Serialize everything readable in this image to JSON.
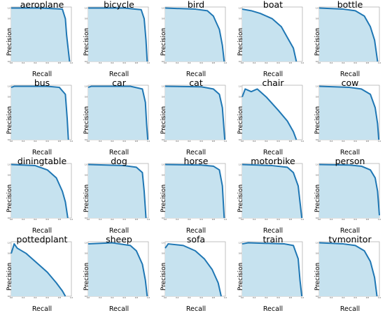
{
  "chart_data": {
    "type": "area",
    "grid": false,
    "x_ticks": [
      "0.0",
      "0.2",
      "0.4",
      "0.6",
      "0.8",
      "1.0"
    ],
    "y_ticks": [
      "0.0",
      "0.2",
      "0.4",
      "0.6",
      "0.8",
      "1.0"
    ],
    "xlim": [
      0,
      1
    ],
    "ylim": [
      0,
      1.02
    ],
    "colors": {
      "line": "#1f77b4",
      "fill": "#c6e2ef",
      "frame": "#999999"
    },
    "panels": [
      {
        "title": "aeroplane",
        "xlabel": "Recall",
        "ylabel": "Precision",
        "points": [
          [
            0,
            1.0
          ],
          [
            0.5,
            1.0
          ],
          [
            0.85,
            0.98
          ],
          [
            0.9,
            0.8
          ],
          [
            0.92,
            0.5
          ],
          [
            0.95,
            0.2
          ],
          [
            0.97,
            0.0
          ]
        ]
      },
      {
        "title": "bicycle",
        "xlabel": "Recall",
        "ylabel": "Precision",
        "points": [
          [
            0,
            1.0
          ],
          [
            0.6,
            1.0
          ],
          [
            0.88,
            0.97
          ],
          [
            0.93,
            0.8
          ],
          [
            0.96,
            0.4
          ],
          [
            0.98,
            0.0
          ]
        ]
      },
      {
        "title": "bird",
        "xlabel": "Recall",
        "ylabel": "Precision",
        "points": [
          [
            0,
            1.0
          ],
          [
            0.5,
            0.98
          ],
          [
            0.7,
            0.95
          ],
          [
            0.8,
            0.85
          ],
          [
            0.9,
            0.6
          ],
          [
            0.95,
            0.3
          ],
          [
            0.98,
            0.0
          ]
        ]
      },
      {
        "title": "boat",
        "xlabel": "Recall",
        "ylabel": "Precision",
        "points": [
          [
            0,
            0.98
          ],
          [
            0.15,
            0.95
          ],
          [
            0.3,
            0.9
          ],
          [
            0.5,
            0.8
          ],
          [
            0.65,
            0.65
          ],
          [
            0.75,
            0.45
          ],
          [
            0.85,
            0.25
          ],
          [
            0.9,
            0.0
          ]
        ]
      },
      {
        "title": "bottle",
        "xlabel": "Recall",
        "ylabel": "Precision",
        "points": [
          [
            0,
            1.0
          ],
          [
            0.4,
            0.98
          ],
          [
            0.6,
            0.95
          ],
          [
            0.75,
            0.85
          ],
          [
            0.85,
            0.65
          ],
          [
            0.92,
            0.4
          ],
          [
            0.97,
            0.0
          ]
        ]
      },
      {
        "title": "bus",
        "xlabel": "Recall",
        "ylabel": "Precision",
        "points": [
          [
            0,
            0.98
          ],
          [
            0.05,
            1.0
          ],
          [
            0.6,
            1.0
          ],
          [
            0.8,
            0.98
          ],
          [
            0.9,
            0.85
          ],
          [
            0.93,
            0.4
          ],
          [
            0.95,
            0.0
          ]
        ]
      },
      {
        "title": "car",
        "xlabel": "Recall",
        "ylabel": "Precision",
        "points": [
          [
            0,
            0.98
          ],
          [
            0.05,
            1.0
          ],
          [
            0.7,
            1.0
          ],
          [
            0.9,
            0.95
          ],
          [
            0.95,
            0.7
          ],
          [
            0.97,
            0.3
          ],
          [
            0.99,
            0.0
          ]
        ]
      },
      {
        "title": "cat",
        "xlabel": "Recall",
        "ylabel": "Precision",
        "points": [
          [
            0,
            1.0
          ],
          [
            0.6,
            0.99
          ],
          [
            0.8,
            0.95
          ],
          [
            0.9,
            0.85
          ],
          [
            0.95,
            0.6
          ],
          [
            0.97,
            0.3
          ],
          [
            0.99,
            0.0
          ]
        ]
      },
      {
        "title": "chair",
        "xlabel": "Recall",
        "ylabel": "Precision",
        "points": [
          [
            0,
            0.8
          ],
          [
            0.05,
            0.95
          ],
          [
            0.15,
            0.9
          ],
          [
            0.25,
            0.95
          ],
          [
            0.4,
            0.8
          ],
          [
            0.6,
            0.55
          ],
          [
            0.75,
            0.35
          ],
          [
            0.85,
            0.15
          ],
          [
            0.9,
            0.0
          ]
        ]
      },
      {
        "title": "cow",
        "xlabel": "Recall",
        "ylabel": "Precision",
        "points": [
          [
            0,
            1.0
          ],
          [
            0.5,
            0.98
          ],
          [
            0.7,
            0.95
          ],
          [
            0.85,
            0.85
          ],
          [
            0.93,
            0.6
          ],
          [
            0.97,
            0.3
          ],
          [
            0.99,
            0.0
          ]
        ]
      },
      {
        "title": "diningtable",
        "xlabel": "Recall",
        "ylabel": "Precision",
        "points": [
          [
            0,
            1.0
          ],
          [
            0.4,
            0.98
          ],
          [
            0.6,
            0.9
          ],
          [
            0.75,
            0.75
          ],
          [
            0.85,
            0.5
          ],
          [
            0.9,
            0.3
          ],
          [
            0.94,
            0.0
          ]
        ]
      },
      {
        "title": "dog",
        "xlabel": "Recall",
        "ylabel": "Precision",
        "points": [
          [
            0,
            1.0
          ],
          [
            0.6,
            0.98
          ],
          [
            0.8,
            0.95
          ],
          [
            0.9,
            0.85
          ],
          [
            0.93,
            0.5
          ],
          [
            0.96,
            0.0
          ]
        ]
      },
      {
        "title": "horse",
        "xlabel": "Recall",
        "ylabel": "Precision",
        "points": [
          [
            0,
            1.0
          ],
          [
            0.6,
            0.99
          ],
          [
            0.8,
            0.97
          ],
          [
            0.9,
            0.9
          ],
          [
            0.95,
            0.6
          ],
          [
            0.98,
            0.0
          ]
        ]
      },
      {
        "title": "motorbike",
        "xlabel": "Recall",
        "ylabel": "Precision",
        "points": [
          [
            0,
            1.0
          ],
          [
            0.5,
            0.98
          ],
          [
            0.75,
            0.95
          ],
          [
            0.85,
            0.85
          ],
          [
            0.93,
            0.6
          ],
          [
            0.97,
            0.2
          ],
          [
            0.99,
            0.0
          ]
        ]
      },
      {
        "title": "person",
        "xlabel": "Recall",
        "ylabel": "Precision",
        "points": [
          [
            0,
            1.0
          ],
          [
            0.5,
            0.99
          ],
          [
            0.7,
            0.97
          ],
          [
            0.85,
            0.9
          ],
          [
            0.93,
            0.75
          ],
          [
            0.97,
            0.5
          ],
          [
            1.0,
            0.05
          ]
        ]
      },
      {
        "title": "pottedplant",
        "xlabel": "Recall",
        "ylabel": "Precision",
        "points": [
          [
            0,
            0.8
          ],
          [
            0.05,
            0.98
          ],
          [
            0.1,
            0.9
          ],
          [
            0.25,
            0.8
          ],
          [
            0.45,
            0.6
          ],
          [
            0.6,
            0.45
          ],
          [
            0.75,
            0.25
          ],
          [
            0.85,
            0.1
          ],
          [
            0.9,
            0.0
          ]
        ]
      },
      {
        "title": "sheep",
        "xlabel": "Recall",
        "ylabel": "Precision",
        "points": [
          [
            0,
            0.98
          ],
          [
            0.4,
            1.0
          ],
          [
            0.7,
            0.95
          ],
          [
            0.8,
            0.85
          ],
          [
            0.9,
            0.6
          ],
          [
            0.95,
            0.3
          ],
          [
            0.98,
            0.0
          ]
        ]
      },
      {
        "title": "sofa",
        "xlabel": "Recall",
        "ylabel": "Precision",
        "points": [
          [
            0,
            0.9
          ],
          [
            0.05,
            0.98
          ],
          [
            0.3,
            0.95
          ],
          [
            0.5,
            0.85
          ],
          [
            0.65,
            0.7
          ],
          [
            0.78,
            0.5
          ],
          [
            0.88,
            0.25
          ],
          [
            0.93,
            0.0
          ]
        ]
      },
      {
        "title": "train",
        "xlabel": "Recall",
        "ylabel": "Precision",
        "points": [
          [
            0,
            0.98
          ],
          [
            0.1,
            1.0
          ],
          [
            0.7,
            0.98
          ],
          [
            0.85,
            0.95
          ],
          [
            0.93,
            0.7
          ],
          [
            0.96,
            0.3
          ],
          [
            0.99,
            0.0
          ]
        ]
      },
      {
        "title": "tvmonitor",
        "xlabel": "Recall",
        "ylabel": "Precision",
        "points": [
          [
            0,
            1.0
          ],
          [
            0.4,
            0.98
          ],
          [
            0.6,
            0.95
          ],
          [
            0.75,
            0.85
          ],
          [
            0.85,
            0.65
          ],
          [
            0.92,
            0.35
          ],
          [
            0.96,
            0.0
          ]
        ]
      }
    ]
  }
}
